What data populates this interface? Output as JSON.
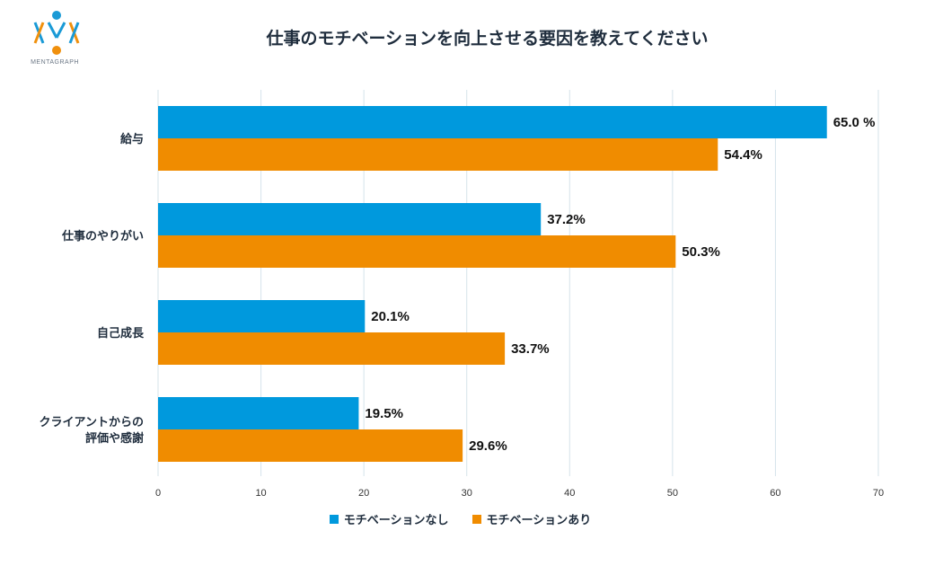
{
  "logo": {
    "text": "MENTAGRAPH",
    "colors": {
      "blue": "#1a9ad6",
      "orange": "#f0900d"
    }
  },
  "title": "仕事のモチベーションを向上させる要因を教えてください",
  "chart_data": {
    "type": "bar",
    "orientation": "horizontal",
    "title": "仕事のモチベーションを向上させる要因を教えてください",
    "categories": [
      [
        "給与"
      ],
      [
        "仕事のやりがい"
      ],
      [
        "自己成長"
      ],
      [
        "クライアントからの",
        "評価や感謝"
      ]
    ],
    "series": [
      {
        "name": "モチベーションなし",
        "color": "#0099dd",
        "values": [
          65.0,
          37.2,
          20.1,
          19.5
        ],
        "labels": [
          "65.0 %",
          "37.2%",
          "20.1%",
          "19.5%"
        ]
      },
      {
        "name": "モチベーションあり",
        "color": "#f08c00",
        "values": [
          54.4,
          50.3,
          33.7,
          29.6
        ],
        "labels": [
          "54.4%",
          "50.3%",
          "33.7%",
          "29.6%"
        ]
      }
    ],
    "xlim": [
      0,
      70
    ],
    "xticks": [
      0,
      10,
      20,
      30,
      40,
      50,
      60,
      70
    ],
    "grid": true,
    "legend_position": "bottom-center"
  }
}
